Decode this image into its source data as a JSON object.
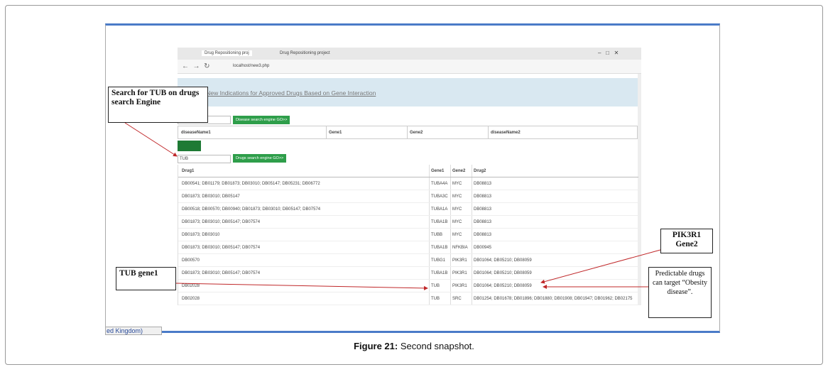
{
  "browser": {
    "tabs": [
      "Drug Repositioning proj",
      "Drug Repositioning project"
    ],
    "url": "localhost/new3.php"
  },
  "banner": {
    "title": "Finding New Indications for Approved Drugs Based on Gene Interaction"
  },
  "disease_search": {
    "button": "Disease search engine GO>>",
    "headers": [
      "diseaseName1",
      "Gene1",
      "Gene2",
      "diseaseName2"
    ]
  },
  "drug_search": {
    "input": "TUB",
    "button": "Drugs search engine GO>>",
    "headers": [
      "Drug1",
      "Gene1",
      "Gene2",
      "Drug2"
    ],
    "rows": [
      [
        "DB00541; DB01179; DB01873; DB03010; DB05147; DB05231; DB06772",
        "TUBA4A",
        "MYC",
        "DB08813"
      ],
      [
        "DB01873; DB03010; DB05147",
        "TUBA3C",
        "MYC",
        "DB08813"
      ],
      [
        "DB00518; DB00570; DB00940; DB01873; DB03010; DB05147; DB07574",
        "TUBA1A",
        "MYC",
        "DB08813"
      ],
      [
        "DB01873; DB03010; DB05147; DB07574",
        "TUBA1B",
        "MYC",
        "DB08813"
      ],
      [
        "DB01873; DB03010",
        "TUBB",
        "MYC",
        "DB08813"
      ],
      [
        "DB01873; DB03010; DB05147; DB07574",
        "TUBA1B",
        "NFKBIA",
        "DB00945"
      ],
      [
        "DB00570",
        "TUBG1",
        "PIK3R1",
        "DB01064; DB05210; DB08059"
      ],
      [
        "DB01873; DB03010; DB05147; DB07574",
        "TUBA1B",
        "PIK3R1",
        "DB01064; DB05210; DB08059"
      ],
      [
        "DB02028",
        "TUB",
        "PIK3R1",
        "DB01064; DB05210; DB08059"
      ],
      [
        "DB02028",
        "TUB",
        "SRC",
        "DB01254; DB01678; DB01896; DB01880; DB01908; DB01947; DB01962; DB02175"
      ]
    ]
  },
  "callouts": {
    "search": "Search for TUB on drugs search Engine",
    "gene1": "TUB gene1",
    "gene2": "PIK3R1 Gene2",
    "predict": "Predictable drugs can target “Obesity disease”."
  },
  "footer_fragment": "ed Kingdom)",
  "caption": {
    "label": "Figure 21:",
    "text": "Second snapshot."
  }
}
